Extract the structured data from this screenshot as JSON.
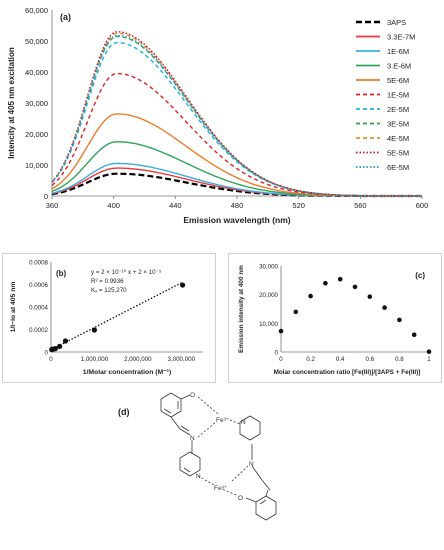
{
  "chart_data": [
    {
      "panel": "(a)",
      "type": "line",
      "xlabel": "Emission wavelength (nm)",
      "ylabel": "Intencity at 405 nm excitation",
      "xlim": [
        360,
        600
      ],
      "ylim": [
        0,
        60000
      ],
      "xticks": [
        "360",
        "400",
        "440",
        "480",
        "520",
        "560",
        "600"
      ],
      "yticks": [
        "0",
        "10,000",
        "20,000",
        "30,000",
        "40,000",
        "50,000",
        "60,000"
      ],
      "legend_position": "right",
      "grid": false,
      "peak_wavelength": 402,
      "series": [
        {
          "name": "3APS",
          "peak": 7200,
          "color": "#000000",
          "dash": "6,3",
          "width": 2.2
        },
        {
          "name": "3.3E-7M",
          "peak": 9000,
          "color": "#e8383d",
          "dash": "",
          "width": 1.4
        },
        {
          "name": "1E-6M",
          "peak": 10500,
          "color": "#3aaee3",
          "dash": "",
          "width": 1.4
        },
        {
          "name": "3.E-6M",
          "peak": 17500,
          "color": "#2ea55a",
          "dash": "",
          "width": 1.4
        },
        {
          "name": "5E-6M",
          "peak": 26500,
          "color": "#ee7d2a",
          "dash": "",
          "width": 1.4
        },
        {
          "name": "1E-5M",
          "peak": 39500,
          "color": "#e02028",
          "dash": "4,3",
          "width": 1.4
        },
        {
          "name": "2E-5M",
          "peak": 49500,
          "color": "#1ab0e8",
          "dash": "4,3",
          "width": 1.4
        },
        {
          "name": "3E-5M",
          "peak": 51500,
          "color": "#2aa44f",
          "dash": "4,3",
          "width": 1.4
        },
        {
          "name": "4E-5M",
          "peak": 52500,
          "color": "#f08a2c",
          "dash": "4,3",
          "width": 1.4
        },
        {
          "name": "5E-5M",
          "peak": 53000,
          "color": "#c8102e",
          "dash": "1.5,2",
          "width": 1.4
        },
        {
          "name": "6E-5M",
          "peak": 51800,
          "color": "#2196d3",
          "dash": "1.5,2",
          "width": 1.4
        }
      ]
    },
    {
      "panel": "(b)",
      "type": "scatter",
      "xlabel": "1/Molar concentration (M⁻¹)",
      "ylabel": "1/I−Io at 405 nm",
      "xlim": [
        0,
        3500000
      ],
      "ylim": [
        0,
        0.0008
      ],
      "xticks": [
        "0",
        "1,000,000",
        "2,000,000",
        "3,000,000"
      ],
      "xtick_values": [
        0,
        1000000,
        2000000,
        3000000
      ],
      "yticks": [
        "0",
        "0.0002",
        "0.0004",
        "0.0006",
        "0.0008"
      ],
      "ytick_values": [
        0,
        0.0002,
        0.0004,
        0.0006,
        0.0008
      ],
      "points": [
        {
          "x": 16667,
          "y": 2.1e-05
        },
        {
          "x": 20000,
          "y": 2.2e-05
        },
        {
          "x": 25000,
          "y": 2.3e-05
        },
        {
          "x": 33333,
          "y": 2.4e-05
        },
        {
          "x": 50000,
          "y": 2.6e-05
        },
        {
          "x": 100000,
          "y": 3e-05
        },
        {
          "x": 200000,
          "y": 5e-05
        },
        {
          "x": 333333,
          "y": 9.8e-05
        },
        {
          "x": 1000000,
          "y": 0.000195
        },
        {
          "x": 3030303,
          "y": 0.000595
        }
      ],
      "fit_line": {
        "x0": 0,
        "y0": 2e-05,
        "x1": 3030303,
        "y1": 0.00062
      },
      "annotations": [
        "y = 2 × 10⁻¹⁰ x + 2 × 10⁻⁵",
        "R² = 0.9936",
        "Kₓ = 125,270"
      ]
    },
    {
      "panel": "(c)",
      "type": "scatter",
      "xlabel": "Molar concentration ratio [Fe(III)]/[3APS + Fe(III)]",
      "ylabel": "Emission intensity at 400 nm",
      "xlim": [
        0,
        1
      ],
      "ylim": [
        0,
        30000
      ],
      "xticks": [
        "0",
        "0.2",
        "0.4",
        "0.6",
        "0.8",
        "1"
      ],
      "xtick_values": [
        0,
        0.2,
        0.4,
        0.6,
        0.8,
        1
      ],
      "yticks": [
        "0",
        "10,000",
        "20,000",
        "30,000"
      ],
      "ytick_values": [
        0,
        10000,
        20000,
        30000
      ],
      "points": [
        {
          "x": 0,
          "y": 7300
        },
        {
          "x": 0.1,
          "y": 14000
        },
        {
          "x": 0.2,
          "y": 19500
        },
        {
          "x": 0.3,
          "y": 24000
        },
        {
          "x": 0.4,
          "y": 25400
        },
        {
          "x": 0.5,
          "y": 22700
        },
        {
          "x": 0.6,
          "y": 19300
        },
        {
          "x": 0.7,
          "y": 15500
        },
        {
          "x": 0.8,
          "y": 11200
        },
        {
          "x": 0.9,
          "y": 6000
        },
        {
          "x": 1.0,
          "y": 100
        }
      ]
    }
  ],
  "panel_d": {
    "label": "(d)",
    "atoms": {
      "fe": "Fe³⁺",
      "n": "N",
      "o": "O"
    }
  }
}
